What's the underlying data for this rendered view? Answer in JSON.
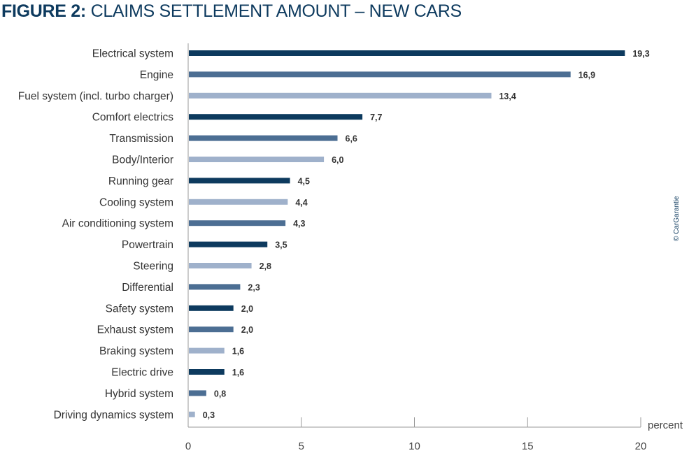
{
  "chart_data": {
    "type": "bar",
    "orientation": "horizontal",
    "title_bold": "FIGURE 2:",
    "title": "CLAIMS SETTLEMENT AMOUNT – NEW CARS",
    "xlabel": "percent",
    "ylabel": "",
    "xlim": [
      0,
      20
    ],
    "xticks": [
      0,
      5,
      10,
      15,
      20
    ],
    "categories": [
      "Electrical system",
      "Engine",
      "Fuel system (incl. turbo charger)",
      "Comfort electrics",
      "Transmission",
      "Body/Interior",
      "Running gear",
      "Cooling system",
      "Air conditioning system",
      "Powertrain",
      "Steering",
      "Differential",
      "Safety system",
      "Exhaust system",
      "Braking system",
      "Electric drive",
      "Hybrid system",
      "Driving dynamics system"
    ],
    "values": [
      19.3,
      16.9,
      13.4,
      7.7,
      6.6,
      6.0,
      4.5,
      4.4,
      4.3,
      3.5,
      2.8,
      2.3,
      2.0,
      2.0,
      1.6,
      1.6,
      0.8,
      0.3
    ],
    "labels": [
      "19,3",
      "16,9",
      "13,4",
      "7,7",
      "6,6",
      "6,0",
      "4,5",
      "4,4",
      "4,3",
      "3,5",
      "2,8",
      "2,3",
      "2,0",
      "2,0",
      "1,6",
      "1,6",
      "0,8",
      "0,3"
    ],
    "bar_shades": [
      "dark",
      "mid",
      "light",
      "dark",
      "mid",
      "light",
      "dark",
      "light",
      "mid",
      "dark",
      "light",
      "mid",
      "dark",
      "mid",
      "light",
      "dark",
      "mid",
      "light"
    ],
    "grid": false
  },
  "colors": {
    "dark": "#0d3a5e",
    "mid": "#4c6e93",
    "light": "#9fb1cb"
  },
  "credit": "© CarGarantie"
}
